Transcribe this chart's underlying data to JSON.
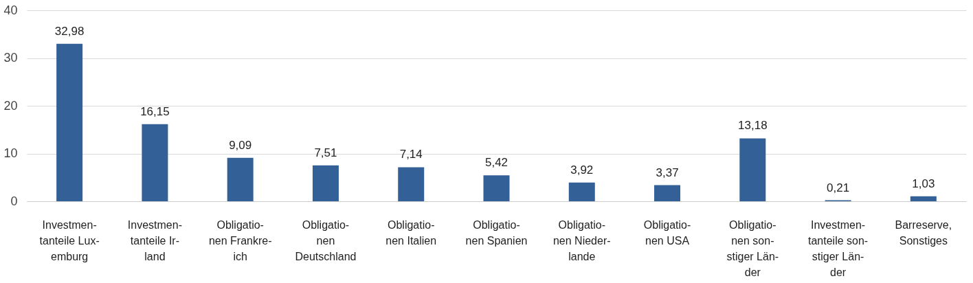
{
  "chart_data": {
    "type": "bar",
    "categories": [
      "Investmen-\ntanteile Lux-\nemburg",
      "Investmen-\ntanteile Ir-\nland",
      "Obligatio-\nnen Frankre-\nich",
      "Obligatio-\nnen\nDeutschland",
      "Obligatio-\nnen Italien",
      "Obligatio-\nnen Spanien",
      "Obligatio-\nnen Nieder-\nlande",
      "Obligatio-\nnen USA",
      "Obligatio-\nnen son-\nstiger Län-\nder",
      "Investmen-\ntanteile son-\nstiger Län-\nder",
      "Barreserve,\nSonstiges"
    ],
    "values": [
      32.98,
      16.15,
      9.09,
      7.51,
      7.14,
      5.42,
      3.92,
      3.37,
      13.18,
      0.21,
      1.03
    ],
    "color": "#336096",
    "ylim": [
      0,
      40
    ],
    "yticks": [
      0,
      10,
      20,
      30,
      40
    ],
    "value_labels": [
      "32,98",
      "16,15",
      "9,09",
      "7,51",
      "7,14",
      "5,42",
      "3,92",
      "3,37",
      "13,18",
      "0,21",
      "1,03"
    ],
    "grid": "y"
  }
}
